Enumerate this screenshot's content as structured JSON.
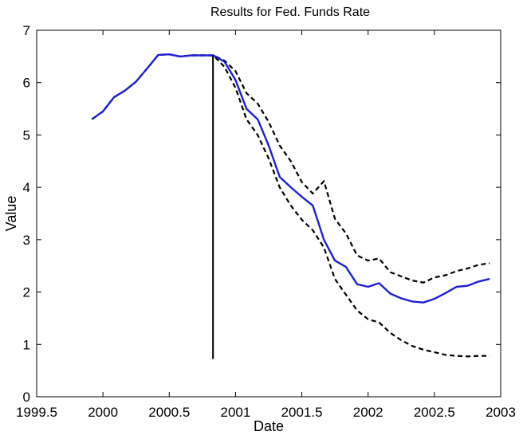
{
  "chart_data": {
    "type": "line",
    "title": "Results for Fed. Funds Rate",
    "xlabel": "Date",
    "ylabel": "Value",
    "xlim": [
      1999.5,
      2003
    ],
    "ylim": [
      0,
      7
    ],
    "x_ticks": [
      1999.5,
      2000,
      2000.5,
      2001,
      2001.5,
      2002,
      2002.5,
      2003
    ],
    "x_tick_labels": [
      "1999.5",
      "2000",
      "2000.5",
      "2001",
      "2001.5",
      "2002",
      "2002.5",
      "2003"
    ],
    "y_ticks": [
      0,
      1,
      2,
      3,
      4,
      5,
      6,
      7
    ],
    "y_tick_labels": [
      "0",
      "1",
      "2",
      "3",
      "4",
      "5",
      "6",
      "7"
    ],
    "grid": false,
    "vertical_marker": {
      "x": 2000.83,
      "y_from": 0.72,
      "y_to": 6.52,
      "color": "#000000"
    },
    "series": [
      {
        "color": "#1f1fd6",
        "style": "solid",
        "x": [
          1999.917,
          2000.0,
          2000.083,
          2000.167,
          2000.25,
          2000.333,
          2000.417,
          2000.5,
          2000.583,
          2000.667,
          2000.75,
          2000.833,
          2000.917,
          2001.0,
          2001.083,
          2001.167,
          2001.25,
          2001.333,
          2001.417,
          2001.5,
          2001.583,
          2001.667,
          2001.75,
          2001.833,
          2001.917,
          2002.0,
          2002.083,
          2002.167,
          2002.25,
          2002.333,
          2002.417,
          2002.5,
          2002.583,
          2002.667,
          2002.75,
          2002.833,
          2002.917
        ],
        "values": [
          5.3,
          5.45,
          5.72,
          5.85,
          6.02,
          6.27,
          6.53,
          6.54,
          6.5,
          6.52,
          6.52,
          6.52,
          6.4,
          6.05,
          5.5,
          5.3,
          4.8,
          4.2,
          4.0,
          3.82,
          3.65,
          3.0,
          2.6,
          2.48,
          2.15,
          2.1,
          2.17,
          1.97,
          1.88,
          1.82,
          1.8,
          1.87,
          1.98,
          2.1,
          2.12,
          2.2,
          2.25
        ]
      },
      {
        "color": "#000000",
        "style": "dashed",
        "x": [
          1999.917,
          2000.0,
          2000.083,
          2000.167,
          2000.25,
          2000.333,
          2000.417,
          2000.5,
          2000.583,
          2000.667,
          2000.75,
          2000.833,
          2000.917,
          2001.0,
          2001.083,
          2001.167,
          2001.25,
          2001.333,
          2001.417,
          2001.5,
          2001.583,
          2001.667,
          2001.75,
          2001.833,
          2001.917,
          2002.0,
          2002.083,
          2002.167,
          2002.25,
          2002.333,
          2002.417,
          2002.5,
          2002.583,
          2002.667,
          2002.75,
          2002.833,
          2002.917
        ],
        "values": [
          5.3,
          5.45,
          5.72,
          5.85,
          6.02,
          6.27,
          6.53,
          6.54,
          6.5,
          6.52,
          6.52,
          6.52,
          6.42,
          6.22,
          5.8,
          5.6,
          5.25,
          4.8,
          4.5,
          4.1,
          3.88,
          4.12,
          3.4,
          3.12,
          2.7,
          2.6,
          2.64,
          2.38,
          2.3,
          2.22,
          2.18,
          2.28,
          2.32,
          2.4,
          2.45,
          2.52,
          2.55
        ]
      },
      {
        "color": "#000000",
        "style": "dashed",
        "x": [
          1999.917,
          2000.0,
          2000.083,
          2000.167,
          2000.25,
          2000.333,
          2000.417,
          2000.5,
          2000.583,
          2000.667,
          2000.75,
          2000.833,
          2000.917,
          2001.0,
          2001.083,
          2001.167,
          2001.25,
          2001.333,
          2001.417,
          2001.5,
          2001.583,
          2001.667,
          2001.75,
          2001.833,
          2001.917,
          2002.0,
          2002.083,
          2002.167,
          2002.25,
          2002.333,
          2002.417,
          2002.5,
          2002.583,
          2002.667,
          2002.75,
          2002.833,
          2002.917
        ],
        "values": [
          5.3,
          5.45,
          5.72,
          5.85,
          6.02,
          6.27,
          6.53,
          6.54,
          6.5,
          6.52,
          6.52,
          6.52,
          6.3,
          5.9,
          5.3,
          5.0,
          4.55,
          4.0,
          3.65,
          3.38,
          3.18,
          2.85,
          2.25,
          1.95,
          1.65,
          1.48,
          1.42,
          1.22,
          1.08,
          0.97,
          0.9,
          0.85,
          0.8,
          0.78,
          0.77,
          0.78,
          0.78
        ]
      }
    ]
  }
}
